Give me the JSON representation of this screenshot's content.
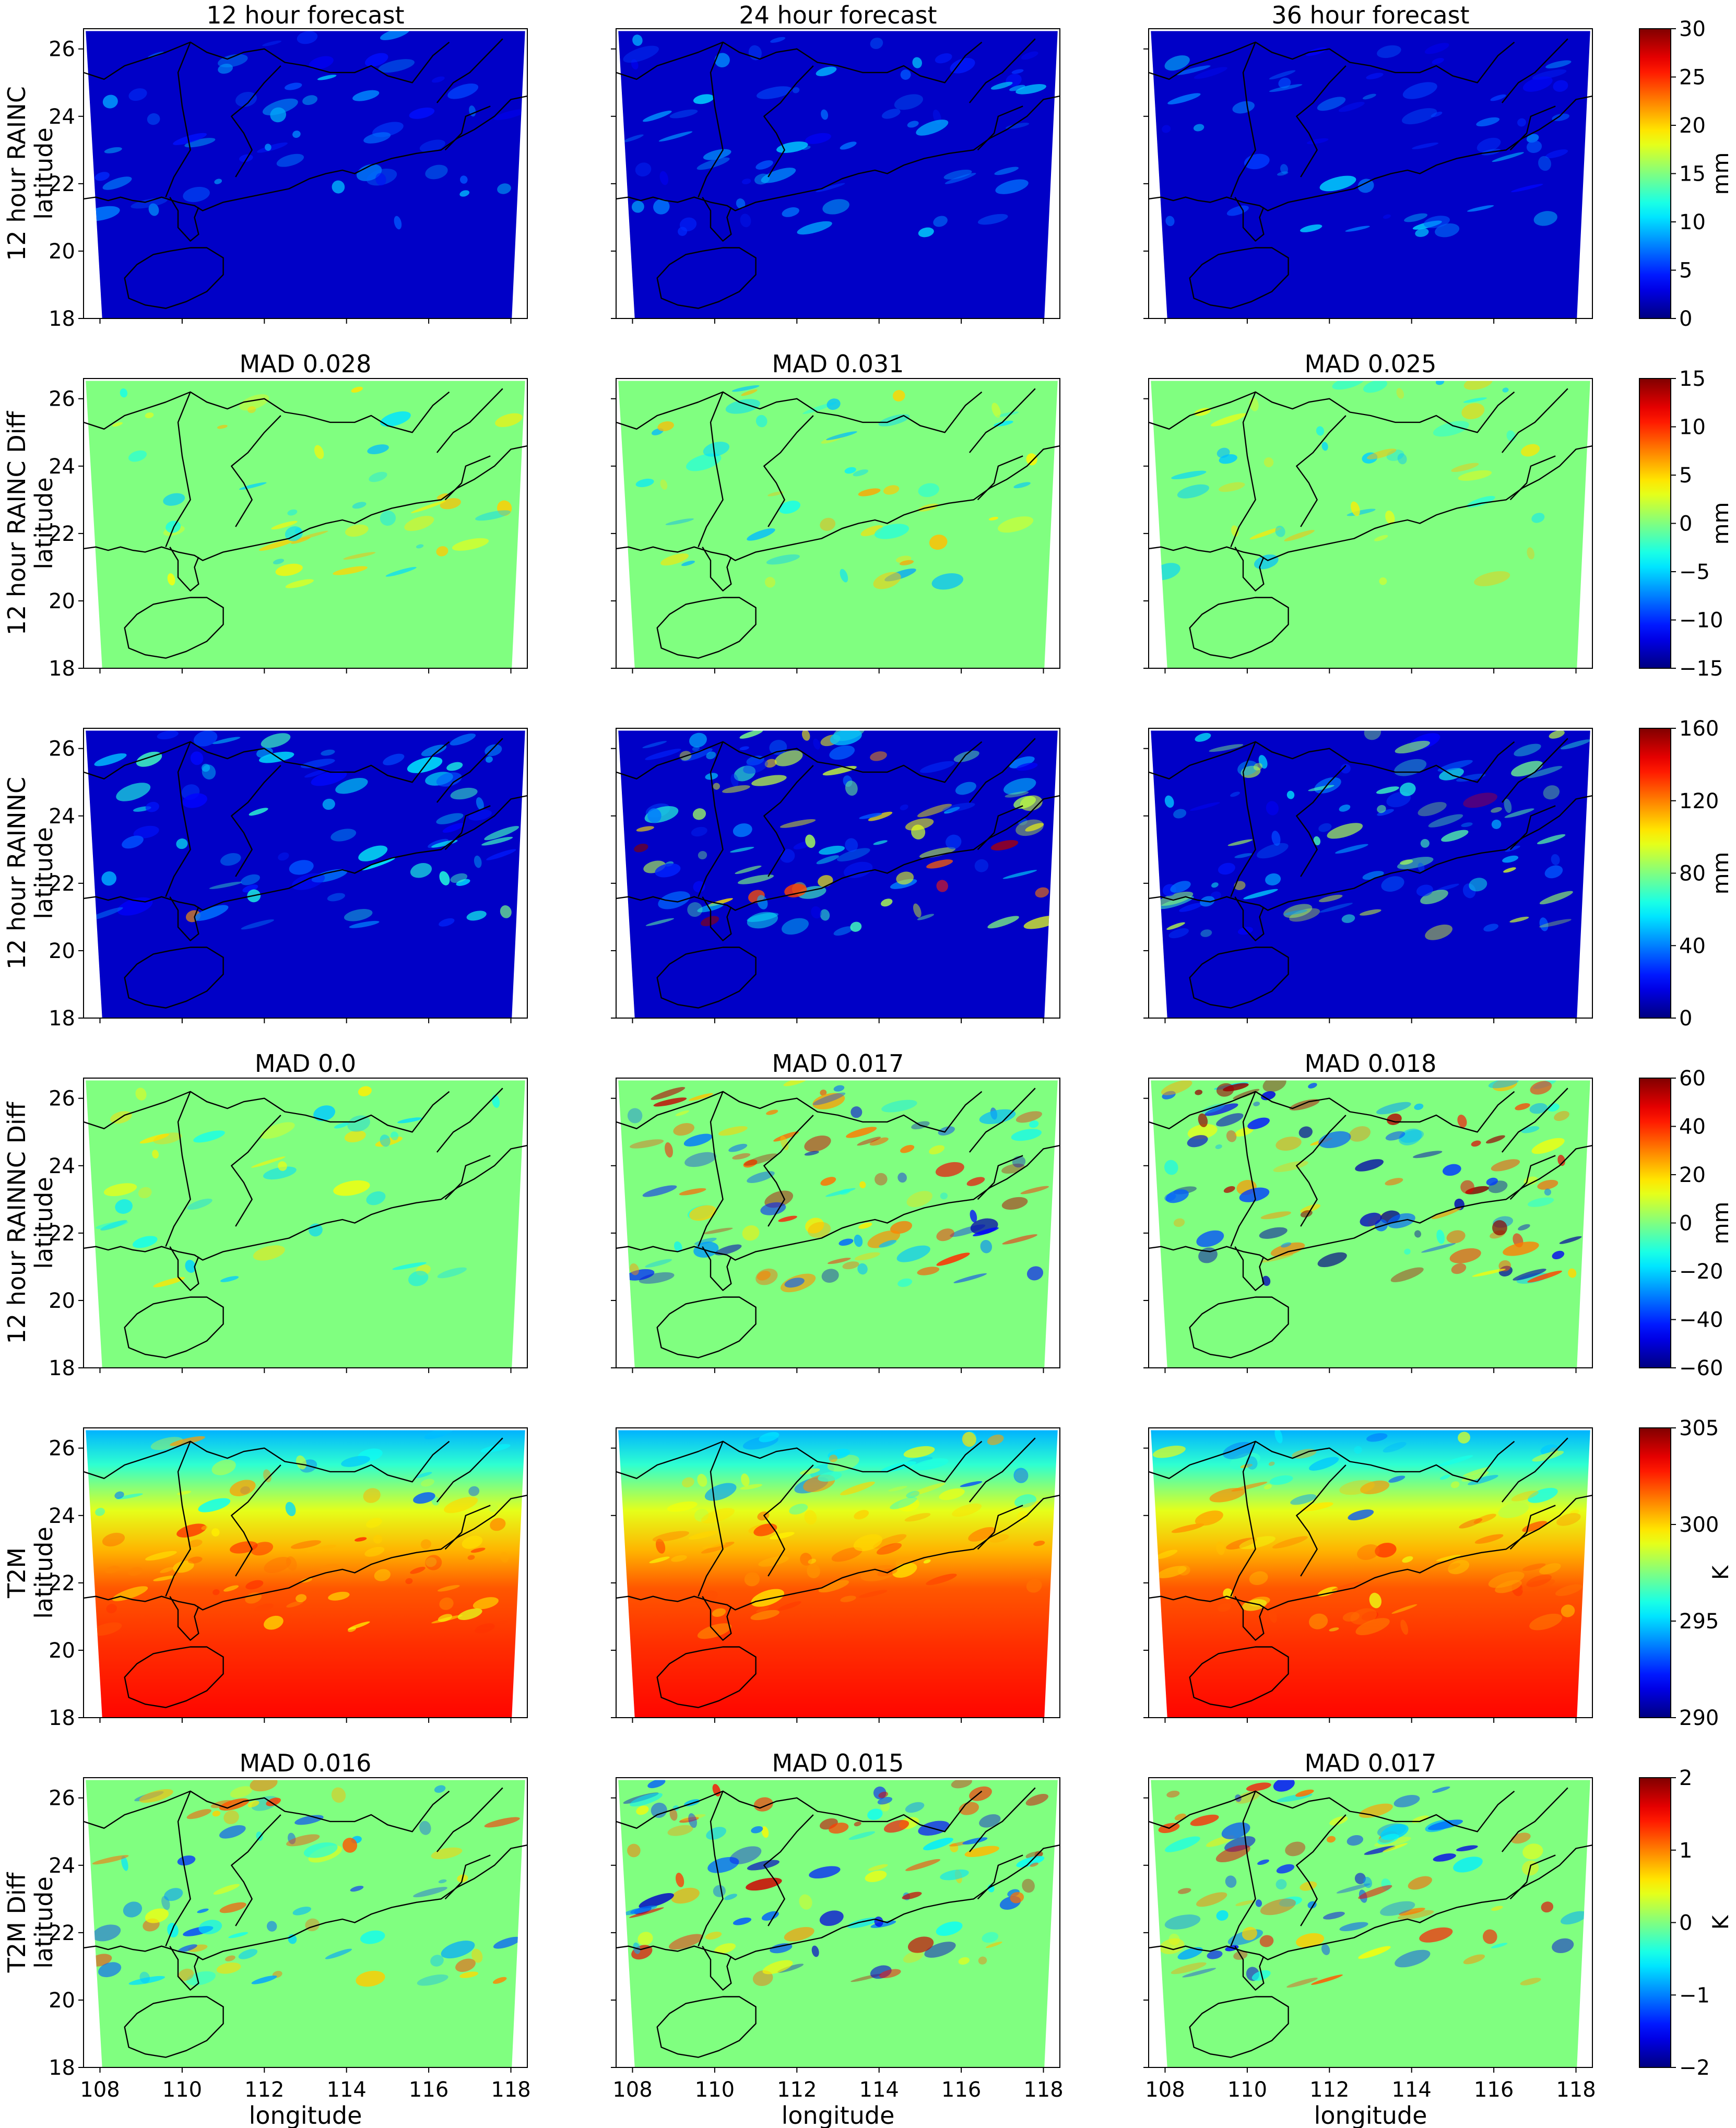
{
  "chart_data": {
    "type": "heatmap",
    "layout": "6 rows x 3 columns of map panels over southern China with one colorbar per row",
    "colormap": "jet",
    "x_axis": {
      "label": "longitude",
      "range": [
        107.6,
        118.4
      ],
      "ticks": [
        108,
        110,
        112,
        114,
        116,
        118
      ]
    },
    "y_axis": {
      "label": "latitude",
      "range": [
        18,
        26.6
      ],
      "ticks": [
        18,
        20,
        22,
        24,
        26
      ]
    },
    "column_titles": [
      "12 hour forecast",
      "24 hour forecast",
      "36 hour forecast"
    ],
    "rows": [
      {
        "row_label": "12 hour RAINC",
        "colorbar": {
          "unit": "mm",
          "min": 0,
          "max": 30,
          "ticks": [
            0,
            5,
            10,
            15,
            20,
            25,
            30
          ],
          "tick_labels": [
            "0",
            "5",
            "10",
            "15",
            "20",
            "25",
            "30"
          ]
        },
        "panel_titles": [
          "",
          "",
          ""
        ]
      },
      {
        "row_label": "12 hour RAINC Diff",
        "colorbar": {
          "unit": "mm",
          "min": -15,
          "max": 15,
          "ticks": [
            -15,
            -10,
            -5,
            0,
            5,
            10,
            15
          ],
          "tick_labels": [
            "−15",
            "−10",
            "−5",
            "0",
            "5",
            "10",
            "15"
          ]
        },
        "panel_titles": [
          "MAD 0.028",
          "MAD 0.031",
          "MAD 0.025"
        ],
        "mad_values": [
          0.028,
          0.031,
          0.025
        ]
      },
      {
        "row_label": "12 hour RAINNC",
        "colorbar": {
          "unit": "mm",
          "min": 0,
          "max": 160,
          "ticks": [
            0,
            40,
            80,
            120,
            160
          ],
          "tick_labels": [
            "0",
            "40",
            "80",
            "120",
            "160"
          ]
        },
        "panel_titles": [
          "",
          "",
          ""
        ]
      },
      {
        "row_label": "12 hour RAINNC Diff",
        "colorbar": {
          "unit": "mm",
          "min": -60,
          "max": 60,
          "ticks": [
            -60,
            -40,
            -20,
            0,
            20,
            40,
            60
          ],
          "tick_labels": [
            "−60",
            "−40",
            "−20",
            "0",
            "20",
            "40",
            "60"
          ]
        },
        "panel_titles": [
          "MAD 0.0",
          "MAD 0.017",
          "MAD 0.018"
        ],
        "mad_values": [
          0.0,
          0.017,
          0.018
        ]
      },
      {
        "row_label": "T2M",
        "colorbar": {
          "unit": "K",
          "min": 290,
          "max": 305,
          "ticks": [
            290,
            295,
            300,
            305
          ],
          "tick_labels": [
            "290",
            "295",
            "300",
            "305"
          ]
        },
        "panel_titles": [
          "",
          "",
          ""
        ]
      },
      {
        "row_label": "T2M Diff",
        "colorbar": {
          "unit": "K",
          "min": -2,
          "max": 2,
          "ticks": [
            -2,
            -1,
            0,
            1,
            2
          ],
          "tick_labels": [
            "−2",
            "−1",
            "0",
            "1",
            "2"
          ]
        },
        "panel_titles": [
          "MAD 0.016",
          "MAD 0.015",
          "MAD 0.017"
        ],
        "mad_values": [
          0.016,
          0.015,
          0.017
        ]
      }
    ]
  },
  "colors": {
    "jet_background_low": "#00008f",
    "jet_zero_mid": "#80ff80",
    "coastline": "#000000",
    "frame": "#000000"
  }
}
